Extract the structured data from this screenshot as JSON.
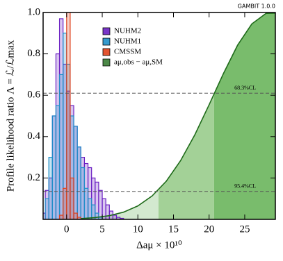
{
  "chart_data": {
    "type": "histogram",
    "badge": "GAMBIT 1.0.0",
    "x_label": "Δaμ × 10¹⁰",
    "y_label": "Profile likelihood ratio Λ = ℒ/ℒmax",
    "xlim": [
      -3.3,
      29.3
    ],
    "ylim": [
      0,
      1
    ],
    "xticks": [
      0,
      5,
      10,
      15,
      20,
      25
    ],
    "yticks": [
      0.2,
      0.4,
      0.6,
      0.8,
      {
        "value": 1,
        "label": "1.0"
      }
    ],
    "bins": [
      -3.5,
      -3,
      -2.5,
      -2,
      -1.5,
      -1,
      -0.5,
      0,
      0.5,
      1,
      1.5,
      2,
      2.5,
      3,
      3.5,
      4,
      4.5,
      5,
      5.5,
      6,
      6.5,
      7,
      7.5,
      8,
      8.5
    ],
    "series": [
      {
        "name": "NUHM2",
        "color": "#6a1fc2",
        "values": [
          0.03,
          0.14,
          0.2,
          0.5,
          0.8,
          0.97,
          0.75,
          0.62,
          0.55,
          0.45,
          0.35,
          0.3,
          0.27,
          0.25,
          0.2,
          0.18,
          0.14,
          0.1,
          0.07,
          0.04,
          0.02,
          0.01,
          0.005,
          0
        ]
      },
      {
        "name": "NUHM1",
        "color": "#1f8fc8",
        "values": [
          0,
          0.1,
          0.3,
          0.5,
          0.55,
          0.7,
          0.9,
          0.75,
          0.5,
          0.45,
          0.35,
          0.25,
          0.15,
          0.1,
          0.07,
          0.03,
          0.01,
          0,
          0,
          0,
          0,
          0,
          0,
          0
        ]
      },
      {
        "name": "CMSSM",
        "color": "#e0401a",
        "values": [
          0,
          0,
          0,
          0,
          0,
          0.02,
          0.15,
          1.0,
          0.2,
          0.03,
          0.01,
          0,
          0,
          0,
          0,
          0,
          0,
          0,
          0,
          0,
          0,
          0,
          0,
          0
        ]
      }
    ],
    "curve": {
      "name": "aμ,obs − aμ,SM",
      "color": "#1f6b1a",
      "x": [
        2,
        4,
        6,
        8,
        10,
        12,
        14,
        16,
        18,
        20,
        22,
        24,
        26,
        28,
        29.3
      ],
      "values": [
        0.0038,
        0.0085,
        0.0178,
        0.035,
        0.065,
        0.113,
        0.185,
        0.284,
        0.409,
        0.554,
        0.704,
        0.842,
        0.945,
        0.996,
        0.997
      ]
    },
    "bands": [
      {
        "from": 4.9,
        "to": 12.9,
        "color": "#d3e9cf"
      },
      {
        "from": 12.9,
        "to": 20.7,
        "color": "#a3d197"
      },
      {
        "from": 20.7,
        "to": 29.3,
        "color": "#79bc6c"
      }
    ],
    "reference_lines": [
      {
        "value": 0.61,
        "label": "68.3%CL"
      },
      {
        "value": 0.135,
        "label": "95.4%CL"
      }
    ]
  }
}
